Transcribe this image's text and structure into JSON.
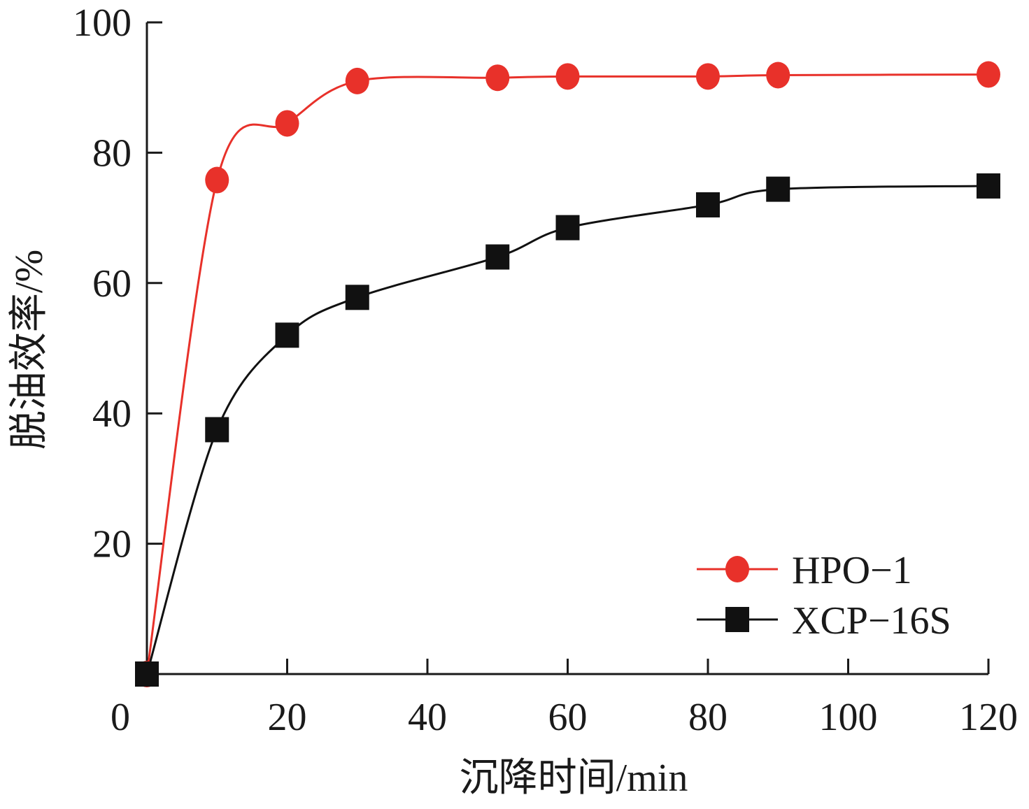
{
  "chart_data": {
    "type": "line",
    "title": "",
    "xlabel": "沉降时间/min",
    "ylabel": "脱油效率/%",
    "xlim": [
      0,
      120
    ],
    "ylim": [
      0,
      100
    ],
    "xticks": [
      0,
      20,
      40,
      60,
      80,
      100,
      120
    ],
    "yticks": [
      20,
      40,
      60,
      80,
      100
    ],
    "legend_position": "bottom-right",
    "grid": false,
    "series": [
      {
        "name": "HPO−1",
        "color": "#e8312a",
        "marker": "circle",
        "x": [
          0,
          10,
          20,
          30,
          50,
          60,
          80,
          90,
          120
        ],
        "y": [
          0,
          75.8,
          84.5,
          91.0,
          91.5,
          91.7,
          91.7,
          91.9,
          92.0
        ]
      },
      {
        "name": "XCP−16S",
        "color": "#111111",
        "marker": "square",
        "x": [
          0,
          10,
          20,
          30,
          50,
          60,
          80,
          90,
          120
        ],
        "y": [
          0,
          37.5,
          52.0,
          57.8,
          64.0,
          68.5,
          72.0,
          74.4,
          74.9
        ]
      }
    ]
  }
}
